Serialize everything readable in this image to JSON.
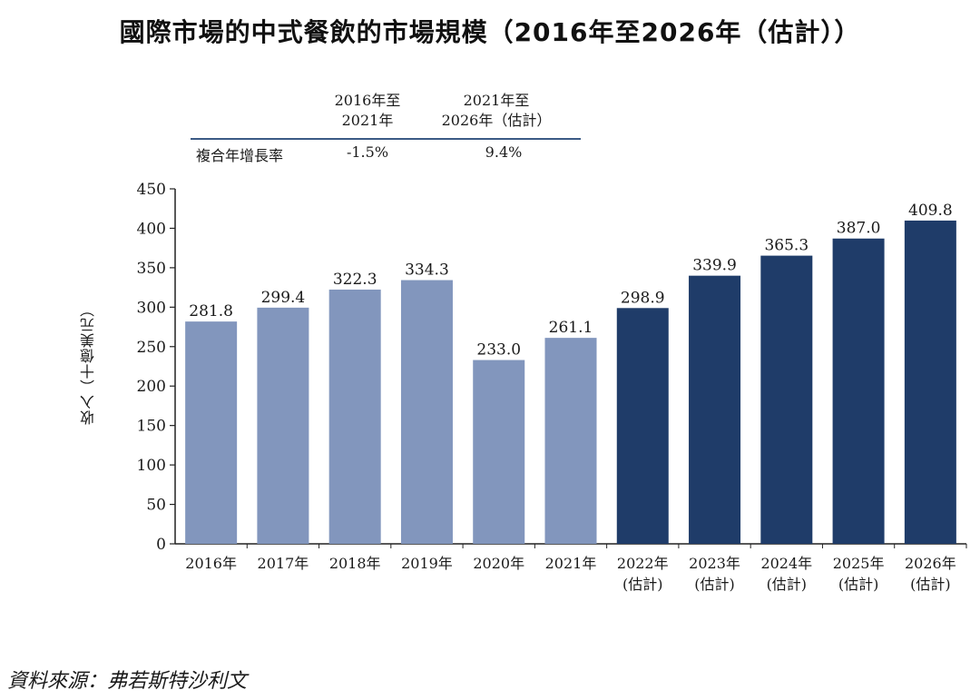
{
  "title": "國際市場的中式餐飲的市場規模（2016年至2026年（估計））",
  "cagr_table": {
    "period1_header": [
      "2016年至",
      "2021年"
    ],
    "period2_header": [
      "2021年至",
      "2026年（估計）"
    ],
    "row_label": "複合年增長率",
    "period1_value": "-1.5%",
    "period2_value": "9.4%"
  },
  "source": "資料來源：弗若斯特沙利文",
  "colors": {
    "historical": "#8296bd",
    "forecast": "#1f3c69",
    "axis": "#222222"
  },
  "chart_data": {
    "type": "bar",
    "title": "國際市場的中式餐飲的市場規模（2016年至2026年（估計））",
    "ylabel": "收入（十億美元）",
    "xlabel": "",
    "ylim": [
      0,
      450
    ],
    "yticks": [
      0,
      50,
      100,
      150,
      200,
      250,
      300,
      350,
      400,
      450
    ],
    "grid": false,
    "categories": [
      [
        "2016年"
      ],
      [
        "2017年"
      ],
      [
        "2018年"
      ],
      [
        "2019年"
      ],
      [
        "2020年"
      ],
      [
        "2021年"
      ],
      [
        "2022年",
        "(估計)"
      ],
      [
        "2023年",
        "(估計)"
      ],
      [
        "2024年",
        "(估計)"
      ],
      [
        "2025年",
        "(估計)"
      ],
      [
        "2026年",
        "(估計)"
      ]
    ],
    "values": [
      281.8,
      299.4,
      322.3,
      334.3,
      233.0,
      261.1,
      298.9,
      339.9,
      365.3,
      387.0,
      409.8
    ],
    "value_labels": [
      "281.8",
      "299.4",
      "322.3",
      "334.3",
      "233.0",
      "261.1",
      "298.9",
      "339.9",
      "365.3",
      "387.0",
      "409.8"
    ],
    "forecast": [
      false,
      false,
      false,
      false,
      false,
      false,
      true,
      true,
      true,
      true,
      true
    ]
  }
}
